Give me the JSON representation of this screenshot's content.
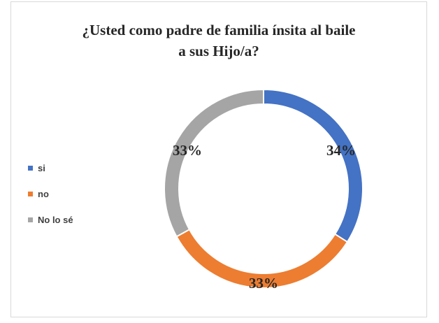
{
  "chart_data": {
    "type": "pie",
    "variant": "doughnut",
    "title": "¿Usted como padre de familia ínsita al baile a sus Hijo/a?",
    "title_lines": [
      "¿Usted como padre de familia ínsita al baile",
      "a sus Hijo/a?"
    ],
    "categories": [
      "si",
      "no",
      "No lo sé"
    ],
    "values": [
      34,
      33,
      33
    ],
    "data_labels": [
      "34%",
      "33%",
      "33%"
    ],
    "colors": [
      "#4472c4",
      "#ed7d31",
      "#a5a5a5"
    ],
    "legend_position": "left"
  }
}
